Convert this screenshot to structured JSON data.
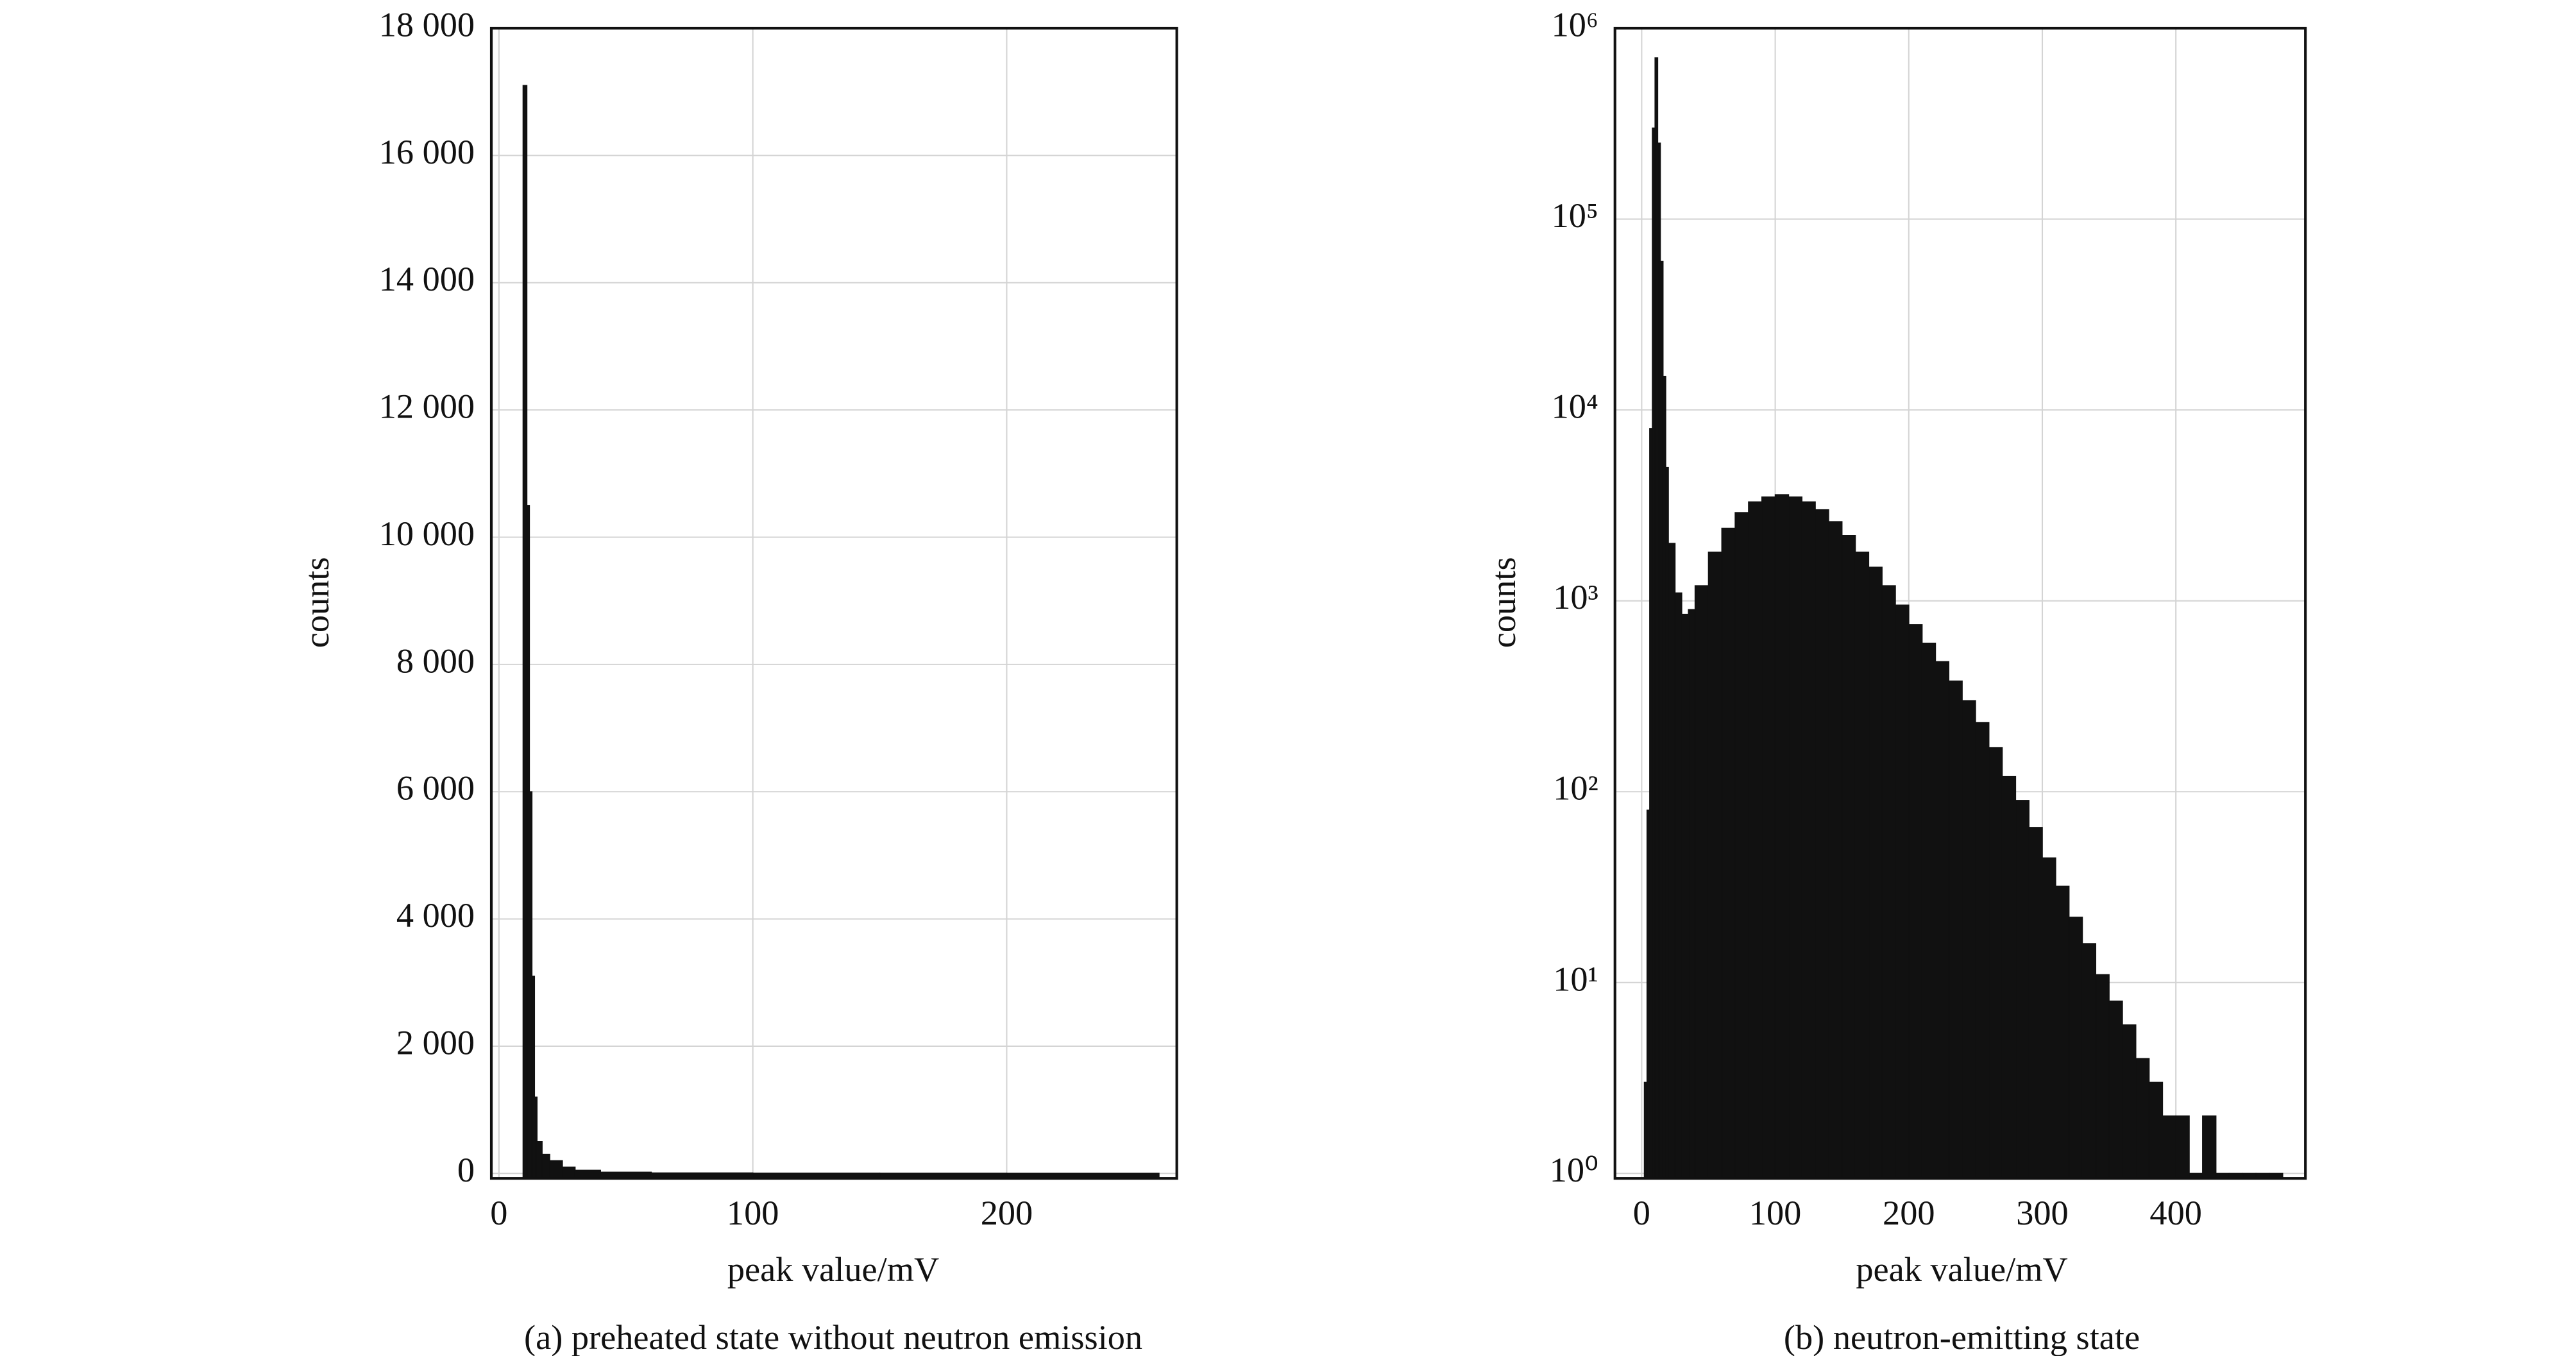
{
  "chart_data": [
    {
      "type": "histogram",
      "caption": "(a) preheated state without neutron emission",
      "xlabel": "peak value/mV",
      "ylabel": "counts",
      "color": "#111111",
      "grid": true,
      "yscale": "linear",
      "bins": [
        9.5,
        11,
        12,
        13,
        14,
        15,
        17,
        20,
        25,
        30,
        40,
        60,
        100,
        150,
        200,
        260
      ],
      "values": [
        17100,
        10500,
        6000,
        3100,
        1200,
        500,
        300,
        200,
        100,
        50,
        20,
        8,
        4,
        3,
        2
      ],
      "xlim": [
        -3,
        267
      ],
      "xticks": [
        0,
        100,
        200
      ],
      "ylim": [
        0,
        18000
      ],
      "yticks": [
        0,
        {
          "value": 2000,
          "label": "2 000"
        },
        {
          "value": 4000,
          "label": "4 000"
        },
        {
          "value": 6000,
          "label": "6 000"
        },
        {
          "value": 8000,
          "label": "8 000"
        },
        {
          "value": 10000,
          "label": "10 000"
        },
        {
          "value": 12000,
          "label": "12 000"
        },
        {
          "value": 14000,
          "label": "14 000"
        },
        {
          "value": 16000,
          "label": "16 000"
        },
        {
          "value": 18000,
          "label": "18 000"
        }
      ]
    },
    {
      "type": "histogram",
      "caption": "(b) neutron-emitting state",
      "xlabel": "peak value/mV",
      "ylabel": "counts",
      "color": "#111111",
      "grid": true,
      "yscale": "log",
      "bins": [
        2,
        4,
        6,
        8,
        10,
        12,
        14,
        16,
        18,
        20,
        25,
        30,
        35,
        40,
        50,
        60,
        70,
        80,
        90,
        100,
        110,
        120,
        130,
        140,
        150,
        160,
        170,
        180,
        190,
        200,
        210,
        220,
        230,
        240,
        250,
        260,
        270,
        280,
        290,
        300,
        310,
        320,
        330,
        340,
        350,
        360,
        370,
        380,
        390,
        400,
        410,
        420,
        430,
        440,
        450,
        460,
        470,
        480
      ],
      "values": [
        3,
        80,
        8000,
        300000,
        700000,
        250000,
        60000,
        15000,
        5000,
        2000,
        1100,
        850,
        900,
        1200,
        1800,
        2400,
        2900,
        3300,
        3500,
        3600,
        3500,
        3300,
        3000,
        2600,
        2200,
        1800,
        1500,
        1200,
        950,
        750,
        600,
        480,
        380,
        300,
        230,
        170,
        120,
        90,
        65,
        45,
        32,
        22,
        16,
        11,
        8,
        6,
        4,
        3,
        2,
        2,
        1,
        2,
        1,
        1,
        1,
        0,
        1
      ],
      "xlim": [
        -20,
        497
      ],
      "xticks": [
        0,
        100,
        200,
        300,
        400
      ],
      "ylim": [
        1,
        1000000
      ],
      "yticks": [
        {
          "value": 1,
          "label": "10⁰"
        },
        {
          "value": 10,
          "label": "10¹"
        },
        {
          "value": 100,
          "label": "10²"
        },
        {
          "value": 1000,
          "label": "10³"
        },
        {
          "value": 10000,
          "label": "10⁴"
        },
        {
          "value": 100000,
          "label": "10⁵"
        },
        {
          "value": 1000000,
          "label": "10⁶"
        }
      ]
    }
  ]
}
